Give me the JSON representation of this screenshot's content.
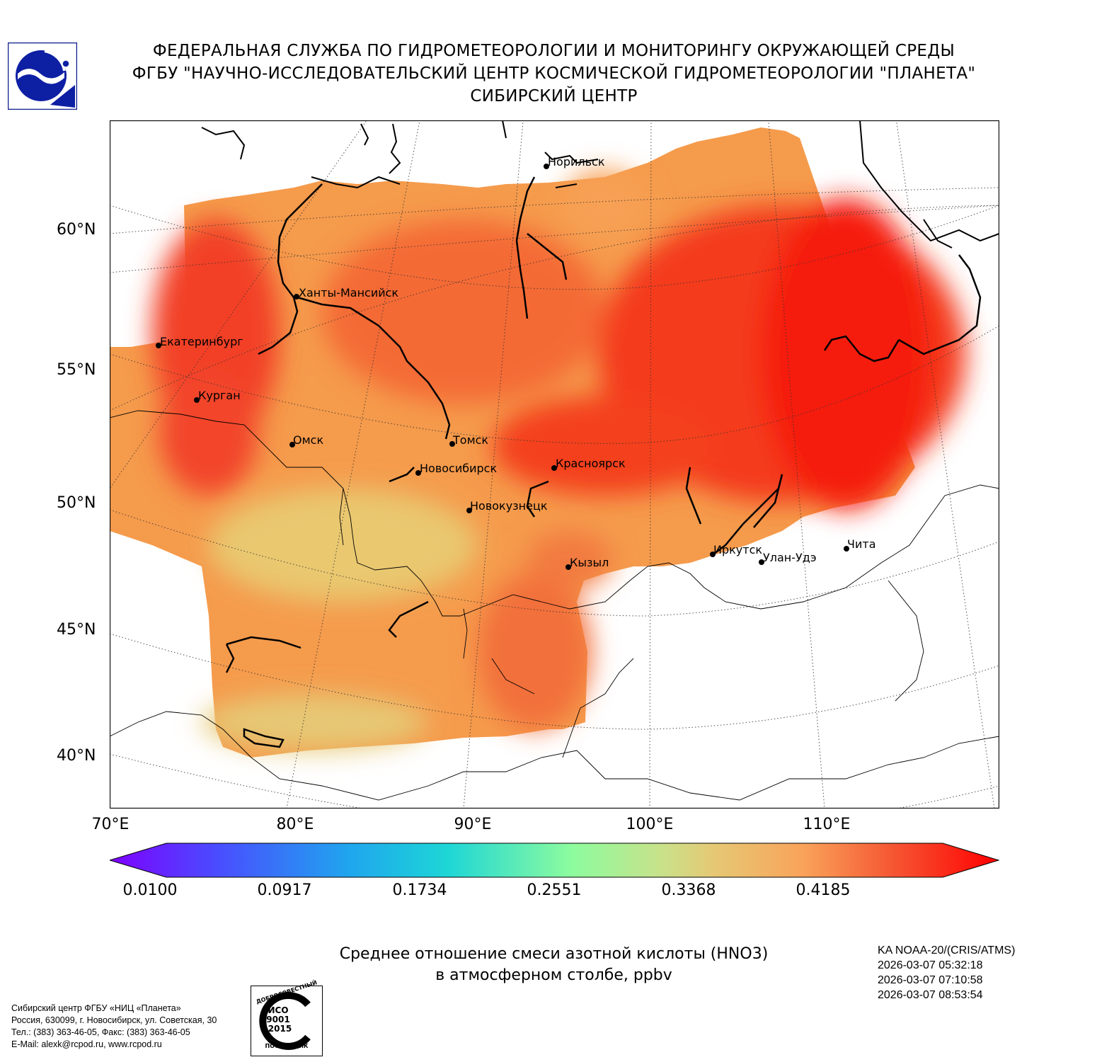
{
  "header": {
    "line1": "ФЕДЕРАЛЬНАЯ СЛУЖБА ПО ГИДРОМЕТЕОРОЛОГИИ И МОНИТОРИНГУ ОКРУЖАЮЩЕЙ СРЕДЫ",
    "line2": "ФГБУ \"НАУЧНО-ИССЛЕДОВАТЕЛЬСКИЙ ЦЕНТР КОСМИЧЕСКОЙ ГИДРОМЕТЕОРОЛОГИИ \"ПЛАНЕТА\"",
    "line3": "СИБИРСКИЙ ЦЕНТР"
  },
  "map": {
    "lat_labels": [
      "60°N",
      "55°N",
      "50°N",
      "45°N",
      "40°N"
    ],
    "lon_labels": [
      "70°E",
      "80°E",
      "90°E",
      "100°E",
      "110°E"
    ],
    "cities": [
      {
        "name": "Норильск"
      },
      {
        "name": "Ханты-Мансийск"
      },
      {
        "name": "Екатеринбург"
      },
      {
        "name": "Курган"
      },
      {
        "name": "Омск"
      },
      {
        "name": "Томск"
      },
      {
        "name": "Новосибирск"
      },
      {
        "name": "Красноярск"
      },
      {
        "name": "Новокузнецк"
      },
      {
        "name": "Кызыл"
      },
      {
        "name": "Иркутск"
      },
      {
        "name": "Улан-Удэ"
      },
      {
        "name": "Чита"
      }
    ],
    "palette": "rainbow (violet → blue → cyan → green → yellow → orange → red)"
  },
  "colorbar": {
    "ticks": [
      "0.0100",
      "0.0917",
      "0.1734",
      "0.2551",
      "0.3368",
      "0.4185"
    ],
    "extend": "both"
  },
  "title": {
    "line1": "Среднее отношение смеси азотной кислоты (HNO3)",
    "line2": "в атмосферном столбе, ppbv"
  },
  "satellite": {
    "name": "KA NOAA-20/(CRIS/ATMS)",
    "passes": [
      "2026-03-07 05:32:18",
      "2026-03-07 07:10:58",
      "2026-03-07 08:53:54"
    ]
  },
  "footer": {
    "line1": "Сибирский центр ФГБУ «НИЦ «Планета»",
    "line2": "Россия, 630099, г. Новосибирск, ул. Советская, 30",
    "line3": "Тел.: (383) 363-46-05, Факс: (383) 363-46-05",
    "line4": "E-Mail: alexk@rcpod.ru, www.rcpod.ru"
  },
  "iso_badge": {
    "top": "ДОБРОСОВЕСТНЫЙ",
    "mid1": "ИСО",
    "mid2": "9001",
    "mid3": "-2015",
    "bottom": "ПОСТАВЩИК"
  }
}
